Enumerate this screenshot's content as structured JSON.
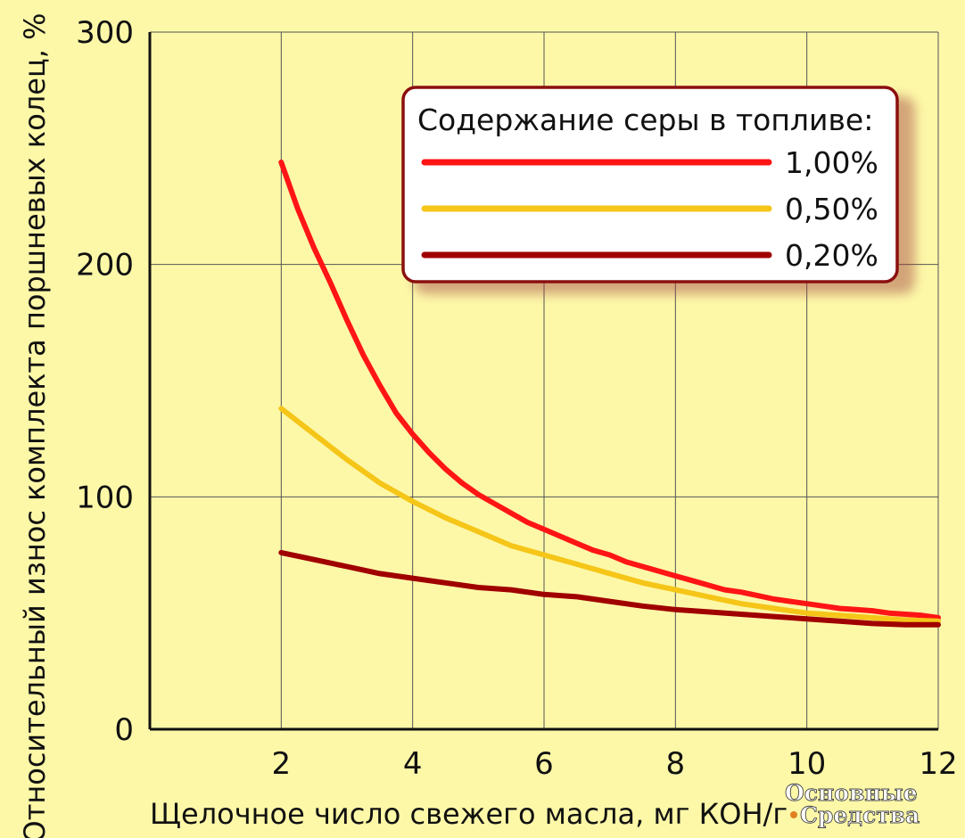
{
  "chart_data": {
    "type": "line",
    "xlabel": "Щелочное число свежего масла, мг КОН/г",
    "ylabel": "Относительный износ комплекта поршневых колец, %",
    "xlim": [
      0,
      12
    ],
    "ylim": [
      0,
      300
    ],
    "x_ticks": [
      "2",
      "4",
      "6",
      "8",
      "10",
      "12"
    ],
    "y_ticks": [
      "0",
      "100",
      "200",
      "300"
    ],
    "grid": true,
    "legend": {
      "title": "Содержание серы в топливе:",
      "placement": "top-right"
    },
    "series": [
      {
        "name": "1,00%",
        "color": "#ff1515",
        "x": [
          2.0,
          2.25,
          2.5,
          2.75,
          3.0,
          3.25,
          3.5,
          3.75,
          4.0,
          4.25,
          4.5,
          4.75,
          5.0,
          5.25,
          5.5,
          5.75,
          6.0,
          6.25,
          6.5,
          6.75,
          7.0,
          7.25,
          7.5,
          7.75,
          8.0,
          8.25,
          8.5,
          8.75,
          9.0,
          9.25,
          9.5,
          9.75,
          10.0,
          10.25,
          10.5,
          10.75,
          11.0,
          11.25,
          11.5,
          11.75,
          12.0
        ],
        "y": [
          244,
          224,
          207,
          192,
          176,
          161,
          148,
          136,
          127,
          119,
          112,
          106,
          101,
          97,
          93,
          89,
          86,
          83,
          80,
          77,
          75,
          72,
          70,
          68,
          66,
          64,
          62,
          60,
          59,
          57.5,
          56,
          55,
          54,
          53,
          52,
          51.5,
          51,
          50,
          49.5,
          49,
          48
        ]
      },
      {
        "name": "0,50%",
        "color": "#f5c518",
        "x": [
          2.0,
          2.5,
          3.0,
          3.5,
          4.0,
          4.5,
          5.0,
          5.5,
          6.0,
          6.5,
          7.0,
          7.5,
          8.0,
          8.5,
          9.0,
          9.5,
          10.0,
          10.5,
          11.0,
          11.5,
          12.0
        ],
        "y": [
          138,
          127,
          116,
          106,
          98,
          91,
          85,
          79,
          75,
          71,
          67,
          63,
          60,
          57,
          54,
          52,
          50,
          49,
          48,
          47,
          46.5
        ]
      },
      {
        "name": "0,20%",
        "color": "#a00000",
        "x": [
          2.0,
          2.5,
          3.0,
          3.5,
          4.0,
          4.5,
          5.0,
          5.5,
          6.0,
          6.5,
          7.0,
          7.5,
          8.0,
          8.5,
          9.0,
          9.5,
          10.0,
          10.5,
          11.0,
          11.5,
          12.0
        ],
        "y": [
          76,
          73,
          70,
          67,
          65,
          63,
          61,
          60,
          58,
          57,
          55,
          53,
          51.5,
          50.5,
          49.5,
          48.5,
          47.5,
          46.5,
          45.5,
          45,
          45
        ]
      }
    ]
  },
  "watermark": {
    "line1": "Основные",
    "line2": "Средства",
    "dot_color": "#e08020"
  }
}
